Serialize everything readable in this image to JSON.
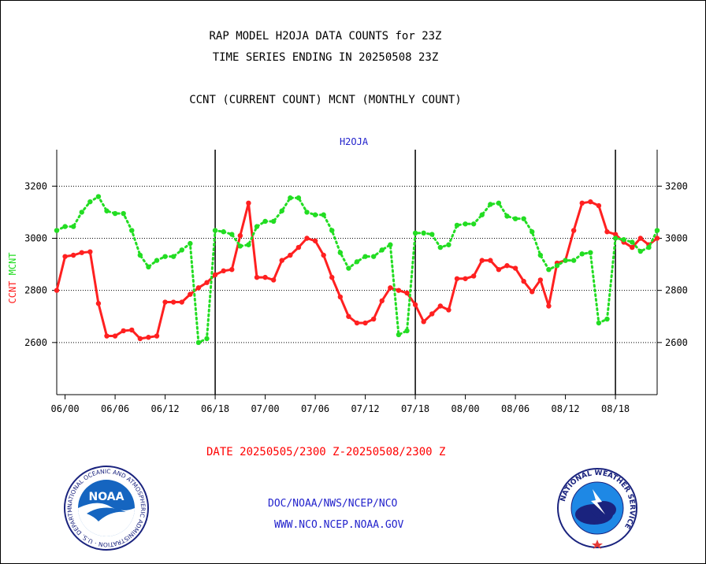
{
  "page": {
    "title_line1": "RAP MODEL H2OJA DATA COUNTS for 23Z",
    "title_line2": "TIME SERIES ENDING IN 20250508 23Z",
    "subtitle": "CCNT (CURRENT COUNT) MCNT (MONTHLY COUNT)",
    "date_range": "DATE 20250505/2300 Z-20250508/2300 Z",
    "footer_line1": "DOC/NOAA/NWS/NCEP/NCO",
    "footer_line2": "WWW.NCO.NCEP.NOAA.GOV"
  },
  "logos": {
    "left": {
      "name": "noaa-logo",
      "text": "NOAA",
      "ring_text": "NATIONAL OCEANIC AND ATMOSPHERIC ADMINISTRATION · U.S. DEPARTMENT OF COMMERCE"
    },
    "right": {
      "name": "nws-logo",
      "ring_text": "NATIONAL WEATHER SERVICE"
    }
  },
  "colors": {
    "ccnt": "#ff2020",
    "mcnt": "#22dd22",
    "axis": "#000000",
    "grid": "#000000",
    "blue_text": "#2222cc"
  },
  "chart_data": {
    "type": "line",
    "title": "H2OJA",
    "ylabel_parts": [
      {
        "text": "CCNT",
        "color": "#ff2020"
      },
      {
        "text": "MCNT",
        "color": "#22dd22"
      }
    ],
    "xlim": [
      -1,
      71
    ],
    "ylim": [
      2400,
      3340
    ],
    "yticks": [
      2600,
      2800,
      3000,
      3200
    ],
    "y_dotted_gridlines": [
      2600,
      2800,
      3000,
      3200
    ],
    "x_tick_labels": [
      {
        "x": 0,
        "label": "06/00"
      },
      {
        "x": 6,
        "label": "06/06"
      },
      {
        "x": 12,
        "label": "06/12"
      },
      {
        "x": 18,
        "label": "06/18"
      },
      {
        "x": 24,
        "label": "07/00"
      },
      {
        "x": 30,
        "label": "07/06"
      },
      {
        "x": 36,
        "label": "07/12"
      },
      {
        "x": 42,
        "label": "07/18"
      },
      {
        "x": 48,
        "label": "08/00"
      },
      {
        "x": 54,
        "label": "08/06"
      },
      {
        "x": 60,
        "label": "08/12"
      },
      {
        "x": 66,
        "label": "08/18"
      }
    ],
    "day_boundaries": [
      18,
      42,
      66
    ],
    "series": [
      {
        "name": "CCNT",
        "color": "#ff2020",
        "style": "solid",
        "x": [
          -1,
          0,
          1,
          2,
          3,
          4,
          5,
          6,
          7,
          8,
          9,
          10,
          11,
          12,
          13,
          14,
          15,
          16,
          17,
          18,
          19,
          20,
          21,
          22,
          23,
          24,
          25,
          26,
          27,
          28,
          29,
          30,
          31,
          32,
          33,
          34,
          35,
          36,
          37,
          38,
          39,
          40,
          41,
          42,
          43,
          44,
          45,
          46,
          47,
          48,
          49,
          50,
          51,
          52,
          53,
          54,
          55,
          56,
          57,
          58,
          59,
          60,
          61,
          62,
          63,
          64,
          65,
          66,
          67,
          68,
          69,
          70,
          71
        ],
        "y": [
          2800,
          2930,
          2935,
          2945,
          2948,
          2750,
          2625,
          2625,
          2645,
          2648,
          2615,
          2620,
          2625,
          2755,
          2755,
          2755,
          2785,
          2810,
          2830,
          2860,
          2875,
          2880,
          3010,
          3135,
          2850,
          2850,
          2840,
          2915,
          2935,
          2965,
          3000,
          2990,
          2935,
          2850,
          2775,
          2700,
          2675,
          2675,
          2690,
          2760,
          2810,
          2800,
          2790,
          2745,
          2680,
          2710,
          2740,
          2725,
          2845,
          2845,
          2855,
          2915,
          2915,
          2880,
          2895,
          2885,
          2835,
          2795,
          2840,
          2740,
          2905,
          2915,
          3030,
          3135,
          3140,
          3125,
          3025,
          3015,
          2985,
          2965,
          3000,
          2975,
          3000
        ]
      },
      {
        "name": "MCNT",
        "color": "#22dd22",
        "style": "dotted",
        "x": [
          -1,
          0,
          1,
          2,
          3,
          4,
          5,
          6,
          7,
          8,
          9,
          10,
          11,
          12,
          13,
          14,
          15,
          16,
          17,
          18,
          19,
          20,
          21,
          22,
          23,
          24,
          25,
          26,
          27,
          28,
          29,
          30,
          31,
          32,
          33,
          34,
          35,
          36,
          37,
          38,
          39,
          40,
          41,
          42,
          43,
          44,
          45,
          46,
          47,
          48,
          49,
          50,
          51,
          52,
          53,
          54,
          55,
          56,
          57,
          58,
          59,
          60,
          61,
          62,
          63,
          64,
          65,
          66,
          67,
          68,
          69,
          70,
          71
        ],
        "y": [
          3030,
          3045,
          3045,
          3100,
          3140,
          3160,
          3105,
          3095,
          3095,
          3030,
          2935,
          2890,
          2915,
          2930,
          2930,
          2955,
          2980,
          2600,
          2615,
          3030,
          3025,
          3015,
          2970,
          2975,
          3045,
          3065,
          3065,
          3105,
          3155,
          3155,
          3100,
          3090,
          3090,
          3030,
          2945,
          2885,
          2910,
          2930,
          2930,
          2955,
          2975,
          2630,
          2645,
          3020,
          3020,
          3015,
          2965,
          2975,
          3050,
          3055,
          3055,
          3090,
          3130,
          3135,
          3085,
          3075,
          3075,
          3025,
          2935,
          2880,
          2895,
          2915,
          2915,
          2940,
          2945,
          2675,
          2690,
          3000,
          2995,
          2985,
          2950,
          2965,
          3030
        ]
      }
    ]
  }
}
